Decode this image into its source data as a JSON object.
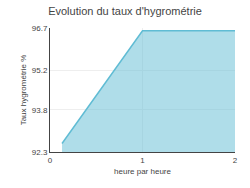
{
  "chart_data": {
    "type": "area",
    "title": "Evolution du taux d'hygrométrie",
    "xlabel": "heure par heure",
    "ylabel": "Taux hygrométrie %",
    "x": [
      0.13,
      1.0,
      2.0
    ],
    "values": [
      92.6,
      96.6,
      96.6
    ],
    "color": "#60bcd4",
    "xlim": [
      0,
      2
    ],
    "xticks": [
      0,
      1,
      2
    ],
    "ylim": [
      92.3,
      96.7
    ],
    "yticks": [
      92.3,
      93.8,
      95.2,
      96.7
    ],
    "grid": true
  }
}
